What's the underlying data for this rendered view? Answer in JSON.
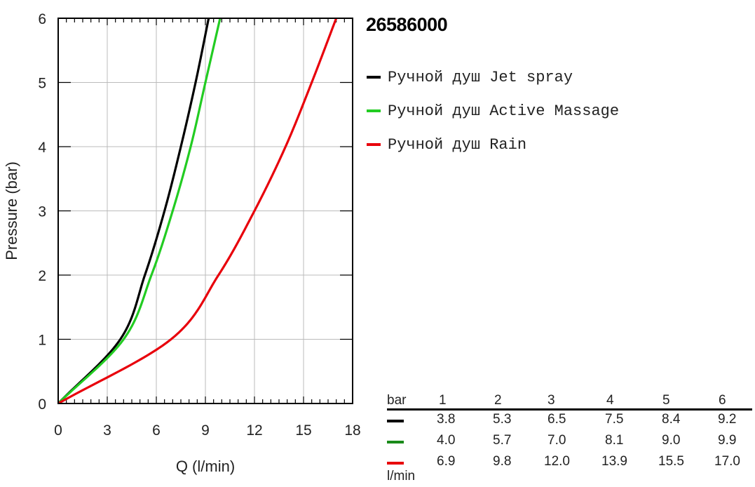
{
  "chart_data": {
    "type": "line",
    "title": "26586000",
    "xlabel": "Q (l/min)",
    "ylabel": "Pressure (bar)",
    "xlim": [
      0,
      18
    ],
    "ylim": [
      0,
      6
    ],
    "xticks": [
      0,
      3,
      6,
      9,
      12,
      15,
      18
    ],
    "yticks": [
      0,
      1,
      2,
      3,
      4,
      5,
      6
    ],
    "grid": true,
    "legend_position": "right",
    "series": [
      {
        "name": "Ручной душ Jet spray",
        "color": "#000000",
        "x": [
          0,
          3.8,
          5.3,
          6.5,
          7.5,
          8.4,
          9.2
        ],
        "y": [
          0,
          1,
          2,
          3,
          4,
          5,
          6
        ]
      },
      {
        "name": "Ручной душ Active Massage",
        "color": "#22cc22",
        "x": [
          0,
          4.0,
          5.7,
          7.0,
          8.1,
          9.0,
          9.9
        ],
        "y": [
          0,
          1,
          2,
          3,
          4,
          5,
          6
        ]
      },
      {
        "name": "Ручной душ Rain",
        "color": "#e8000b",
        "x": [
          0,
          6.9,
          9.8,
          12.0,
          13.9,
          15.5,
          17.0
        ],
        "y": [
          0,
          1,
          2,
          3,
          4,
          5,
          6
        ]
      }
    ]
  },
  "table": {
    "header_label": "bar",
    "columns": [
      "1",
      "2",
      "3",
      "4",
      "5",
      "6"
    ],
    "rows": [
      {
        "color": "#000000",
        "values": [
          "3.8",
          "5.3",
          "6.5",
          "7.5",
          "8.4",
          "9.2"
        ]
      },
      {
        "color": "#1a8a1a",
        "values": [
          "4.0",
          "5.7",
          "7.0",
          "8.1",
          "9.0",
          "9.9"
        ]
      },
      {
        "color": "#e8000b",
        "values": [
          "6.9",
          "9.8",
          "12.0",
          "13.9",
          "15.5",
          "17.0"
        ]
      }
    ],
    "unit_label": "l/min"
  }
}
